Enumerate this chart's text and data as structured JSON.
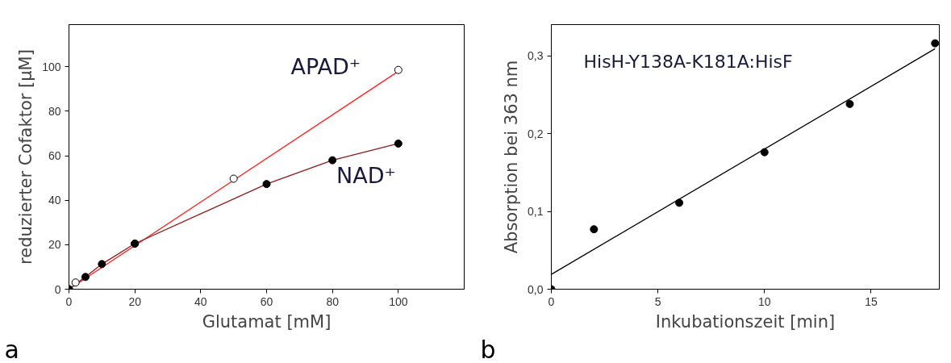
{
  "chart_data": [
    {
      "type": "scatter",
      "xlabel": "Glutamat [mM]",
      "ylabel": "reduzierter Cofaktor [µM]",
      "xlim": [
        0,
        120
      ],
      "ylim": [
        0,
        119
      ],
      "xticks": [
        0,
        20,
        40,
        60,
        80,
        100
      ],
      "yticks": [
        0,
        20,
        40,
        60,
        80,
        100
      ],
      "grid": false,
      "marker": "circle",
      "series": [
        {
          "type": "line",
          "name": "APAD⁺",
          "color": "#ff2020",
          "x": [
            0,
            100
          ],
          "values": [
            0,
            98
          ],
          "marker": "none"
        },
        {
          "type": "line",
          "name": "NAD⁺",
          "color": "#8b1c1c",
          "x": [
            0,
            5,
            10,
            20,
            60,
            80,
            100
          ],
          "values": [
            0,
            5.5,
            11.3,
            20.5,
            47.3,
            58,
            65.5
          ],
          "marker": "none"
        },
        {
          "color": "#ffffff",
          "x": [
            0,
            2,
            20,
            50,
            100
          ],
          "values": [
            0,
            3,
            20.5,
            49.7,
            98.6
          ]
        },
        {
          "color": "#000000",
          "x": [
            0,
            5,
            10,
            20,
            60,
            80,
            100
          ],
          "values": [
            0,
            5.5,
            11.3,
            20.5,
            47.3,
            58,
            65.5
          ]
        }
      ],
      "annotations": [
        "a"
      ]
    },
    {
      "type": "scatter",
      "xlabel": "Inkubationszeit [min]",
      "ylabel": "Absorption bei 363 nm",
      "xlim": [
        0,
        18.2
      ],
      "ylim": [
        0,
        0.34
      ],
      "xticks": [
        0,
        5,
        10,
        15
      ],
      "yticks": [
        {
          "value": 0,
          "label": "0,0"
        },
        {
          "value": 0.1,
          "label": "0,1"
        },
        {
          "value": 0.2,
          "label": "0,2"
        },
        {
          "value": 0.3,
          "label": "0,3"
        }
      ],
      "grid": false,
      "marker": "circle",
      "series": [
        {
          "type": "line",
          "color": "#000000",
          "x": [
            0,
            18
          ],
          "values": [
            0.019,
            0.309
          ],
          "marker": "none"
        },
        {
          "color": "#000000",
          "x": [
            0,
            2,
            6,
            10,
            14,
            18
          ],
          "values": [
            0,
            0.077,
            0.111,
            0.176,
            0.238,
            0.316
          ]
        }
      ],
      "annotations": [
        "b",
        "HisH-Y138A-K181A:HisF"
      ]
    }
  ]
}
